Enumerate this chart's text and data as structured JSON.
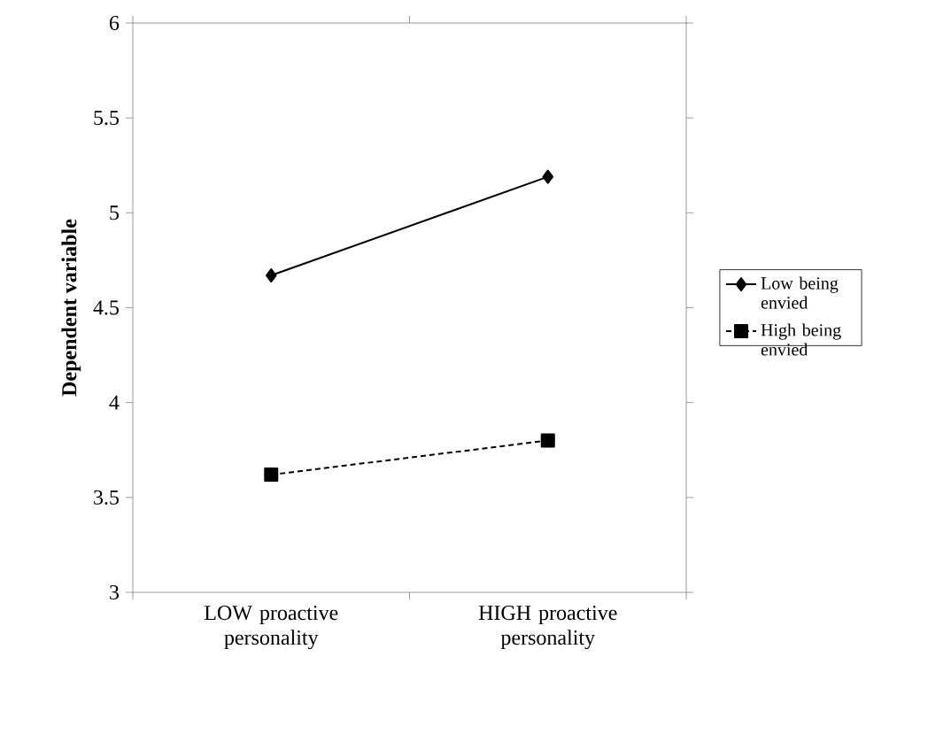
{
  "chart_data": {
    "type": "line",
    "ylabel": "Dependent variable",
    "categories": [
      "LOW proactive personality",
      "HIGH proactive personality"
    ],
    "series": [
      {
        "name": "Low being envied",
        "color": "#000000",
        "values": [
          4.67,
          5.19
        ],
        "marker": "diamond",
        "line_style": "solid"
      },
      {
        "name": "High being envied",
        "color": "#000000",
        "values": [
          3.62,
          3.8
        ],
        "marker": "square",
        "line_style": "dashed"
      }
    ],
    "ylim": [
      3,
      6
    ],
    "yticks": [
      3,
      3.5,
      4,
      4.5,
      5,
      5.5,
      6
    ],
    "legend": "right",
    "grid": false
  }
}
